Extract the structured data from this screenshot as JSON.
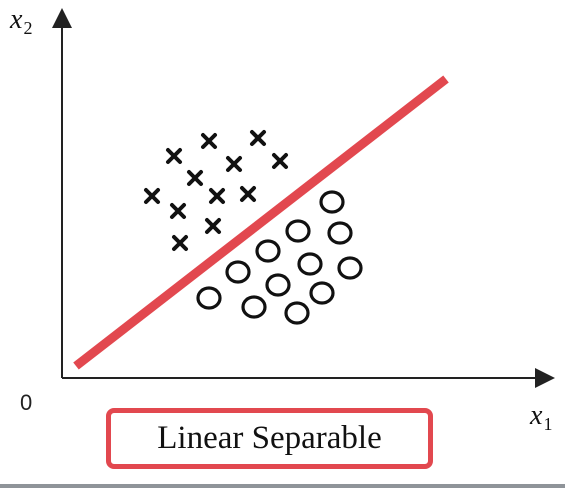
{
  "labels": {
    "x_axis_var": "x",
    "x_axis_sub": "1",
    "y_axis_var": "x",
    "y_axis_sub": "2",
    "origin": "0",
    "caption": "Linear Separable"
  },
  "colors": {
    "boundary": "#e2484f",
    "caption_border": "#e2484f",
    "marks": "#111111"
  },
  "icons": {
    "x_marker": "cross-mark",
    "o_marker": "circle-mark"
  }
}
